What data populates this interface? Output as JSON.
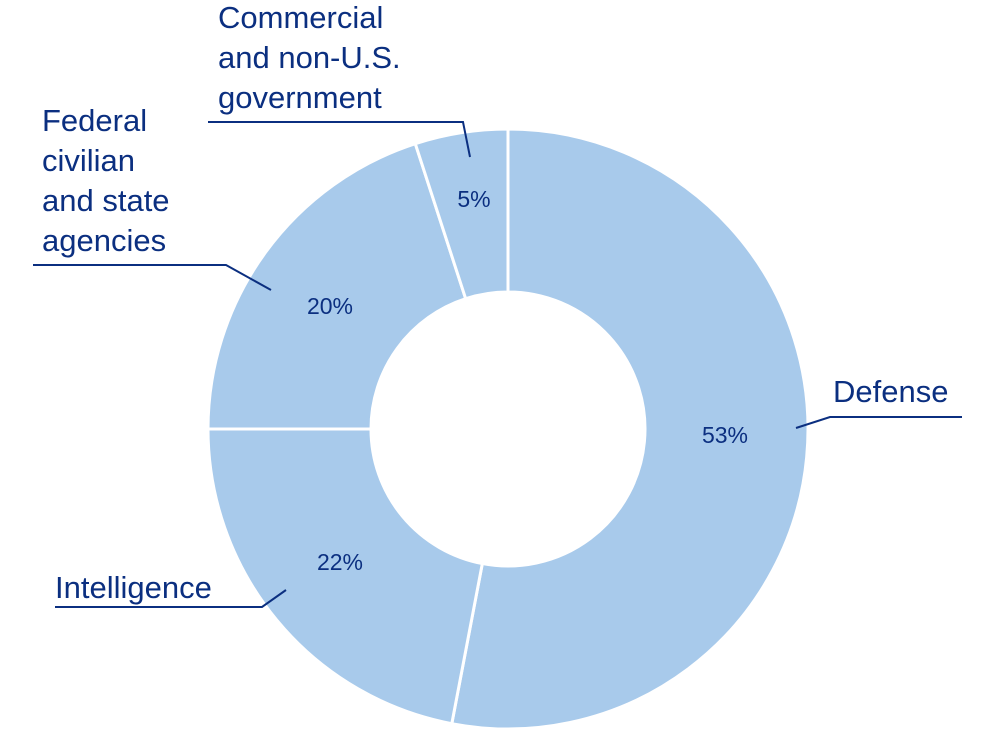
{
  "chart_data": {
    "type": "pie",
    "variant": "donut",
    "title": "",
    "slices": [
      {
        "label": "Defense",
        "label_lines": [
          "Defense"
        ],
        "value": 53,
        "display": "53%"
      },
      {
        "label": "Intelligence",
        "label_lines": [
          "Intelligence"
        ],
        "value": 22,
        "display": "22%"
      },
      {
        "label": "Federal civilian and state agencies",
        "label_lines": [
          "Federal",
          "civilian",
          "and state",
          "agencies"
        ],
        "value": 20,
        "display": "20%"
      },
      {
        "label": "Commercial and non-U.S. government",
        "label_lines": [
          "Commercial",
          "and non-U.S.",
          "government"
        ],
        "value": 5,
        "display": "5%"
      }
    ],
    "colors": {
      "slice_fill": "#a8caeb",
      "separator": "#ffffff",
      "text": "#0b2f80",
      "leader_line": "#0b2f80"
    },
    "legend": "none"
  }
}
